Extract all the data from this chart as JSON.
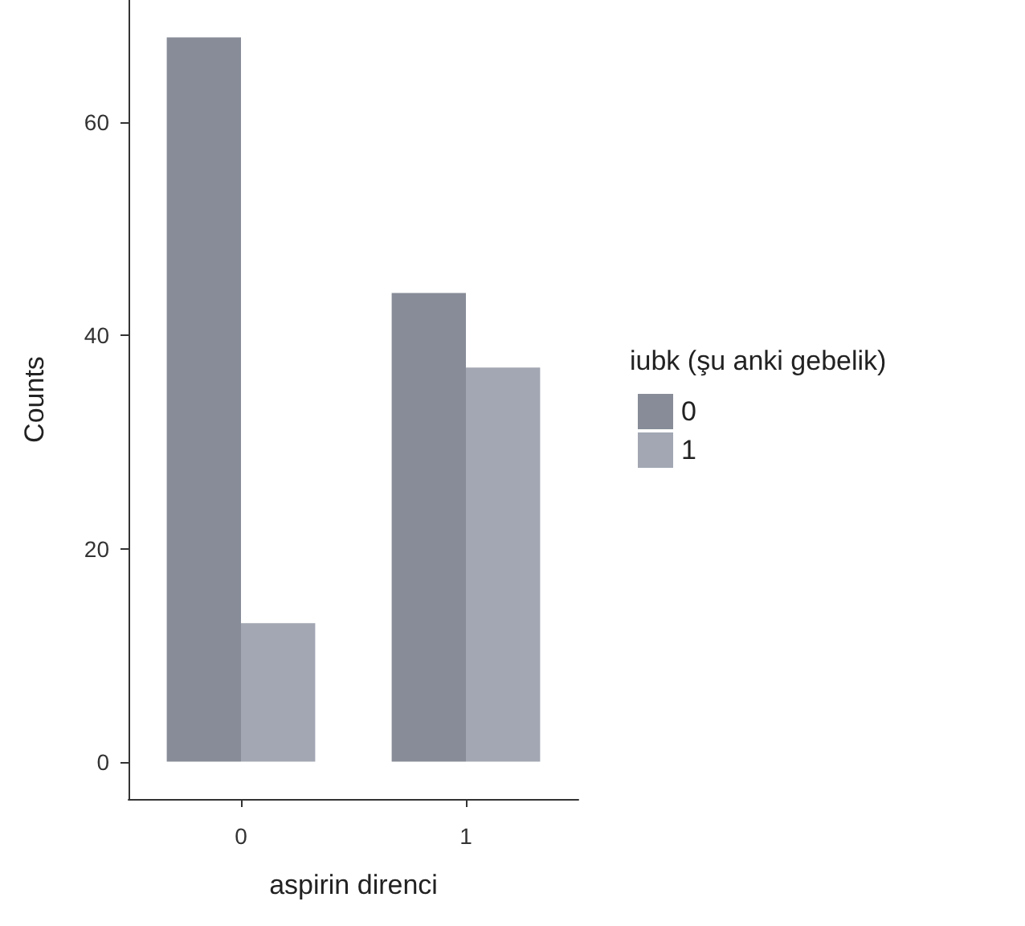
{
  "chart_data": {
    "type": "bar",
    "xlabel": "aspirin direnci",
    "ylabel": "Counts",
    "legend_title": "iubk (şu anki gebelik)",
    "categories": [
      "0",
      "1"
    ],
    "series": [
      {
        "name": "0",
        "color": "#878c98",
        "values": [
          68,
          44
        ]
      },
      {
        "name": "1",
        "color": "#a2a7b3",
        "values": [
          13,
          37
        ]
      }
    ],
    "ylim": [
      -3.5,
      71.5
    ],
    "yticks": [
      0,
      20,
      40,
      60
    ],
    "grid": false,
    "legend": "right"
  }
}
